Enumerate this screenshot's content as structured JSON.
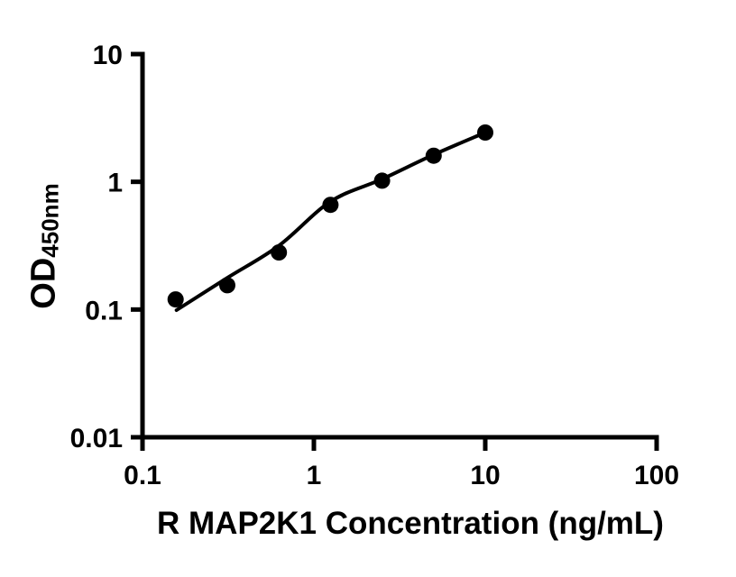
{
  "figure": {
    "background": "#ffffff",
    "foreground": "#000000"
  },
  "chart_data": {
    "type": "scatter",
    "subtype": "elisa-standard-curve-with-fit",
    "title": "",
    "xlabel": "R MAP2K1 Concentration (ng/mL)",
    "ylabel_main": "OD",
    "ylabel_sub": "450nm",
    "x_scale": "log",
    "y_scale": "log",
    "xlim": [
      0.1,
      100
    ],
    "ylim": [
      0.01,
      10
    ],
    "grid": false,
    "legend": false,
    "x_ticks": [
      {
        "value": 0.1,
        "label": "0.1"
      },
      {
        "value": 1,
        "label": "1"
      },
      {
        "value": 10,
        "label": "10"
      },
      {
        "value": 100,
        "label": "100"
      }
    ],
    "y_ticks": [
      {
        "value": 0.01,
        "label": "0.01"
      },
      {
        "value": 0.1,
        "label": "0.1"
      },
      {
        "value": 1,
        "label": "1"
      },
      {
        "value": 10,
        "label": "10"
      }
    ],
    "marker_color": "#000000",
    "curve_color": "#000000",
    "axis_color": "#000000",
    "points": [
      {
        "x": 0.156,
        "y": 0.12
      },
      {
        "x": 0.3125,
        "y": 0.155
      },
      {
        "x": 0.625,
        "y": 0.28
      },
      {
        "x": 1.25,
        "y": 0.66
      },
      {
        "x": 2.5,
        "y": 1.02
      },
      {
        "x": 5,
        "y": 1.6
      },
      {
        "x": 10,
        "y": 2.43
      }
    ],
    "fit_curve": [
      {
        "x": 0.158,
        "y": 0.099
      },
      {
        "x": 0.3125,
        "y": 0.177
      },
      {
        "x": 0.625,
        "y": 0.316
      },
      {
        "x": 1.25,
        "y": 0.7
      },
      {
        "x": 2.5,
        "y": 1.05
      },
      {
        "x": 5,
        "y": 1.63
      },
      {
        "x": 10,
        "y": 2.43
      }
    ]
  }
}
